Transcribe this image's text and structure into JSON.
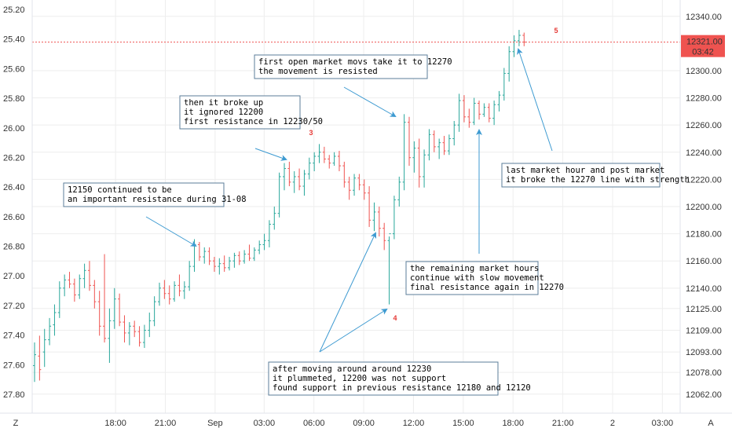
{
  "colors": {
    "up": "#26a69a",
    "down": "#ef5350",
    "arrow": "#3d9ad1",
    "grid": "#eeeeee",
    "price_line": "#ef5350",
    "marker": "#e53935",
    "box_border": "#5b7d99"
  },
  "chart_data": {
    "type": "candlestick",
    "left_axis": {
      "ticks": [
        "25.20",
        "25.40",
        "25.60",
        "25.80",
        "26.00",
        "26.20",
        "26.40",
        "26.60",
        "26.80",
        "27.00",
        "27.20",
        "27.40",
        "27.60",
        "27.80"
      ]
    },
    "right_axis": {
      "ticks": [
        {
          "label": "12340.00",
          "value": 12340
        },
        {
          "label": "12300.00",
          "value": 12300
        },
        {
          "label": "12280.00",
          "value": 12280
        },
        {
          "label": "12260.00",
          "value": 12260
        },
        {
          "label": "12240.00",
          "value": 12240
        },
        {
          "label": "12220.00",
          "value": 12220
        },
        {
          "label": "12200.00",
          "value": 12200
        },
        {
          "label": "12180.00",
          "value": 12180
        },
        {
          "label": "12160.00",
          "value": 12160
        },
        {
          "label": "12140.00",
          "value": 12140
        },
        {
          "label": "12125.00",
          "value": 12125
        },
        {
          "label": "12109.00",
          "value": 12109
        },
        {
          "label": "12093.00",
          "value": 12093
        },
        {
          "label": "12078.00",
          "value": 12078
        },
        {
          "label": "12062.00",
          "value": 12062
        }
      ],
      "ylim": [
        12048,
        12352
      ]
    },
    "current_price": {
      "label": "12321.00",
      "value": 12321,
      "countdown": "03:42"
    },
    "x_ticks": [
      {
        "label": "18:00",
        "pos": 0.145
      },
      {
        "label": "21:00",
        "pos": 0.213
      },
      {
        "label": "Sep",
        "pos": 0.281
      },
      {
        "label": "03:00",
        "pos": 0.348
      },
      {
        "label": "06:00",
        "pos": 0.416
      },
      {
        "label": "09:00",
        "pos": 0.484
      },
      {
        "label": "12:00",
        "pos": 0.552
      },
      {
        "label": "15:00",
        "pos": 0.62
      },
      {
        "label": "18:00",
        "pos": 0.688
      },
      {
        "label": "21:00",
        "pos": 0.756
      },
      {
        "label": "2",
        "pos": 0.824
      },
      {
        "label": "03:00",
        "pos": 0.892
      }
    ],
    "axis_buttons": [
      "Z",
      "A"
    ],
    "candles": [
      {
        "o": 12083,
        "h": 12100,
        "l": 12071,
        "c": 12091
      },
      {
        "o": 12090,
        "h": 12105,
        "l": 12072,
        "c": 12080
      },
      {
        "o": 12093,
        "h": 12110,
        "l": 12082,
        "c": 12102
      },
      {
        "o": 12102,
        "h": 12118,
        "l": 12098,
        "c": 12112
      },
      {
        "o": 12113,
        "h": 12128,
        "l": 12105,
        "c": 12122
      },
      {
        "o": 12122,
        "h": 12145,
        "l": 12118,
        "c": 12140
      },
      {
        "o": 12140,
        "h": 12150,
        "l": 12134,
        "c": 12146
      },
      {
        "o": 12146,
        "h": 12152,
        "l": 12140,
        "c": 12143
      },
      {
        "o": 12143,
        "h": 12147,
        "l": 12130,
        "c": 12135
      },
      {
        "o": 12135,
        "h": 12150,
        "l": 12132,
        "c": 12147
      },
      {
        "o": 12147,
        "h": 12158,
        "l": 12140,
        "c": 12153
      },
      {
        "o": 12153,
        "h": 12160,
        "l": 12138,
        "c": 12142
      },
      {
        "o": 12142,
        "h": 12146,
        "l": 12125,
        "c": 12130
      },
      {
        "o": 12130,
        "h": 12138,
        "l": 12105,
        "c": 12112
      },
      {
        "o": 12112,
        "h": 12165,
        "l": 12100,
        "c": 12103
      },
      {
        "o": 12103,
        "h": 12125,
        "l": 12085,
        "c": 12116
      },
      {
        "o": 12116,
        "h": 12140,
        "l": 12110,
        "c": 12132
      },
      {
        "o": 12132,
        "h": 12136,
        "l": 12112,
        "c": 12115
      },
      {
        "o": 12115,
        "h": 12120,
        "l": 12100,
        "c": 12107
      },
      {
        "o": 12107,
        "h": 12115,
        "l": 12098,
        "c": 12112
      },
      {
        "o": 12112,
        "h": 12116,
        "l": 12104,
        "c": 12108
      },
      {
        "o": 12108,
        "h": 12112,
        "l": 12097,
        "c": 12100
      },
      {
        "o": 12100,
        "h": 12113,
        "l": 12096,
        "c": 12109
      },
      {
        "o": 12109,
        "h": 12122,
        "l": 12104,
        "c": 12116
      },
      {
        "o": 12116,
        "h": 12134,
        "l": 12112,
        "c": 12130
      },
      {
        "o": 12130,
        "h": 12144,
        "l": 12127,
        "c": 12140
      },
      {
        "o": 12140,
        "h": 12146,
        "l": 12132,
        "c": 12136
      },
      {
        "o": 12136,
        "h": 12142,
        "l": 12128,
        "c": 12132
      },
      {
        "o": 12132,
        "h": 12145,
        "l": 12130,
        "c": 12142
      },
      {
        "o": 12142,
        "h": 12150,
        "l": 12134,
        "c": 12138
      },
      {
        "o": 12138,
        "h": 12145,
        "l": 12132,
        "c": 12141
      },
      {
        "o": 12141,
        "h": 12160,
        "l": 12138,
        "c": 12156
      },
      {
        "o": 12156,
        "h": 12176,
        "l": 12152,
        "c": 12172
      },
      {
        "o": 12172,
        "h": 12174,
        "l": 12160,
        "c": 12163
      },
      {
        "o": 12163,
        "h": 12170,
        "l": 12158,
        "c": 12167
      },
      {
        "o": 12167,
        "h": 12170,
        "l": 12157,
        "c": 12160
      },
      {
        "o": 12160,
        "h": 12163,
        "l": 12152,
        "c": 12156
      },
      {
        "o": 12156,
        "h": 12162,
        "l": 12150,
        "c": 12158
      },
      {
        "o": 12158,
        "h": 12164,
        "l": 12152,
        "c": 12155
      },
      {
        "o": 12155,
        "h": 12163,
        "l": 12153,
        "c": 12160
      },
      {
        "o": 12160,
        "h": 12166,
        "l": 12155,
        "c": 12164
      },
      {
        "o": 12164,
        "h": 12167,
        "l": 12157,
        "c": 12160
      },
      {
        "o": 12160,
        "h": 12168,
        "l": 12158,
        "c": 12165
      },
      {
        "o": 12165,
        "h": 12172,
        "l": 12160,
        "c": 12162
      },
      {
        "o": 12162,
        "h": 12170,
        "l": 12160,
        "c": 12168
      },
      {
        "o": 12168,
        "h": 12175,
        "l": 12165,
        "c": 12172
      },
      {
        "o": 12172,
        "h": 12180,
        "l": 12168,
        "c": 12175
      },
      {
        "o": 12175,
        "h": 12190,
        "l": 12170,
        "c": 12187
      },
      {
        "o": 12187,
        "h": 12200,
        "l": 12183,
        "c": 12195
      },
      {
        "o": 12195,
        "h": 12225,
        "l": 12192,
        "c": 12222
      },
      {
        "o": 12222,
        "h": 12232,
        "l": 12212,
        "c": 12228
      },
      {
        "o": 12228,
        "h": 12233,
        "l": 12215,
        "c": 12218
      },
      {
        "o": 12218,
        "h": 12226,
        "l": 12210,
        "c": 12222
      },
      {
        "o": 12222,
        "h": 12228,
        "l": 12212,
        "c": 12215
      },
      {
        "o": 12215,
        "h": 12227,
        "l": 12208,
        "c": 12224
      },
      {
        "o": 12224,
        "h": 12236,
        "l": 12220,
        "c": 12232
      },
      {
        "o": 12232,
        "h": 12240,
        "l": 12226,
        "c": 12237
      },
      {
        "o": 12237,
        "h": 12246,
        "l": 12232,
        "c": 12240
      },
      {
        "o": 12240,
        "h": 12244,
        "l": 12232,
        "c": 12235
      },
      {
        "o": 12235,
        "h": 12238,
        "l": 12228,
        "c": 12232
      },
      {
        "o": 12232,
        "h": 12240,
        "l": 12230,
        "c": 12237
      },
      {
        "o": 12237,
        "h": 12241,
        "l": 12226,
        "c": 12230
      },
      {
        "o": 12230,
        "h": 12233,
        "l": 12214,
        "c": 12218
      },
      {
        "o": 12218,
        "h": 12222,
        "l": 12205,
        "c": 12212
      },
      {
        "o": 12212,
        "h": 12224,
        "l": 12208,
        "c": 12221
      },
      {
        "o": 12221,
        "h": 12224,
        "l": 12212,
        "c": 12216
      },
      {
        "o": 12216,
        "h": 12220,
        "l": 12205,
        "c": 12210
      },
      {
        "o": 12210,
        "h": 12215,
        "l": 12185,
        "c": 12190
      },
      {
        "o": 12190,
        "h": 12203,
        "l": 12182,
        "c": 12196
      },
      {
        "o": 12196,
        "h": 12200,
        "l": 12178,
        "c": 12184
      },
      {
        "o": 12184,
        "h": 12188,
        "l": 12168,
        "c": 12175
      },
      {
        "o": 12175,
        "h": 12178,
        "l": 12128,
        "c": 12180
      },
      {
        "o": 12180,
        "h": 12208,
        "l": 12176,
        "c": 12205
      },
      {
        "o": 12205,
        "h": 12222,
        "l": 12200,
        "c": 12218
      },
      {
        "o": 12218,
        "h": 12268,
        "l": 12212,
        "c": 12262
      },
      {
        "o": 12262,
        "h": 12266,
        "l": 12230,
        "c": 12236
      },
      {
        "o": 12236,
        "h": 12248,
        "l": 12225,
        "c": 12243
      },
      {
        "o": 12243,
        "h": 12250,
        "l": 12214,
        "c": 12222
      },
      {
        "o": 12222,
        "h": 12242,
        "l": 12214,
        "c": 12238
      },
      {
        "o": 12238,
        "h": 12257,
        "l": 12234,
        "c": 12253
      },
      {
        "o": 12253,
        "h": 12256,
        "l": 12240,
        "c": 12244
      },
      {
        "o": 12244,
        "h": 12250,
        "l": 12235,
        "c": 12247
      },
      {
        "o": 12247,
        "h": 12252,
        "l": 12238,
        "c": 12241
      },
      {
        "o": 12241,
        "h": 12253,
        "l": 12238,
        "c": 12250
      },
      {
        "o": 12250,
        "h": 12263,
        "l": 12245,
        "c": 12260
      },
      {
        "o": 12260,
        "h": 12283,
        "l": 12255,
        "c": 12278
      },
      {
        "o": 12278,
        "h": 12282,
        "l": 12262,
        "c": 12266
      },
      {
        "o": 12266,
        "h": 12272,
        "l": 12258,
        "c": 12262
      },
      {
        "o": 12262,
        "h": 12280,
        "l": 12260,
        "c": 12276
      },
      {
        "o": 12276,
        "h": 12278,
        "l": 12264,
        "c": 12268
      },
      {
        "o": 12268,
        "h": 12276,
        "l": 12266,
        "c": 12273
      },
      {
        "o": 12273,
        "h": 12276,
        "l": 12262,
        "c": 12265
      },
      {
        "o": 12265,
        "h": 12278,
        "l": 12260,
        "c": 12275
      },
      {
        "o": 12275,
        "h": 12285,
        "l": 12270,
        "c": 12282
      },
      {
        "o": 12282,
        "h": 12302,
        "l": 12278,
        "c": 12298
      },
      {
        "o": 12298,
        "h": 12318,
        "l": 12292,
        "c": 12314
      },
      {
        "o": 12314,
        "h": 12326,
        "l": 12310,
        "c": 12322
      },
      {
        "o": 12322,
        "h": 12330,
        "l": 12318,
        "c": 12326
      },
      {
        "o": 12326,
        "h": 12328,
        "l": 12318,
        "c": 12321
      }
    ],
    "markers": [
      {
        "label": "3",
        "x": 396,
        "y": 172
      },
      {
        "label": "4",
        "x": 503,
        "y": 408
      },
      {
        "label": "5",
        "x": 708,
        "y": 42
      }
    ],
    "annotations": [
      {
        "id": "a1",
        "lines": [
          "12150 continued to be",
          "an important resistance during 31-08"
        ]
      },
      {
        "id": "a2",
        "lines": [
          "then it broke up",
          "it ignored 12200",
          "first resistance in 12230/50"
        ]
      },
      {
        "id": "a3",
        "lines": [
          "first open market movs take it to 12270",
          "the movement is resisted"
        ]
      },
      {
        "id": "a4",
        "lines": [
          "the remaining market hours",
          "continue with slow movement",
          "final resistance again in 12270"
        ]
      },
      {
        "id": "a5",
        "lines": [
          "after moving around around 12230",
          "it plummeted, 12200 was not support",
          "found support in previous resistance 12180 and 12120"
        ]
      },
      {
        "id": "a6",
        "lines": [
          "last market hour and post market",
          "it broke the 12270 line with strength"
        ]
      }
    ]
  }
}
